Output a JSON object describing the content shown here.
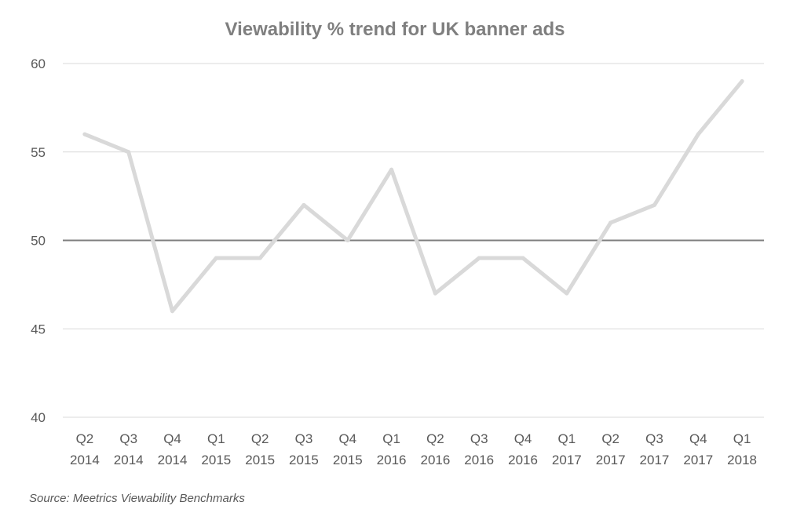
{
  "chart_data": {
    "type": "line",
    "title": "Viewability % trend for UK banner ads",
    "xlabel": "",
    "ylabel": "",
    "categories": [
      [
        "Q2",
        "2014"
      ],
      [
        "Q3",
        "2014"
      ],
      [
        "Q4",
        "2014"
      ],
      [
        "Q1",
        "2015"
      ],
      [
        "Q2",
        "2015"
      ],
      [
        "Q3",
        "2015"
      ],
      [
        "Q4",
        "2015"
      ],
      [
        "Q1",
        "2016"
      ],
      [
        "Q2",
        "2016"
      ],
      [
        "Q3",
        "2016"
      ],
      [
        "Q4",
        "2016"
      ],
      [
        "Q1",
        "2017"
      ],
      [
        "Q2",
        "2017"
      ],
      [
        "Q3",
        "2017"
      ],
      [
        "Q4",
        "2017"
      ],
      [
        "Q1",
        "2018"
      ]
    ],
    "series": [
      {
        "values": [
          56,
          55,
          46,
          49,
          49,
          52,
          50,
          54,
          47,
          49,
          49,
          47,
          51,
          52,
          56,
          59
        ]
      }
    ],
    "ylim": [
      40,
      60
    ],
    "yticks": [
      40,
      45,
      50,
      55,
      60
    ],
    "reference_line": 50,
    "grid": true,
    "legend": "none",
    "colors": {
      "line": "#d9d9d9",
      "grid": "#d9d9d9",
      "reference": "#7f7f7f",
      "title": "#7f7f7f"
    },
    "source": "Source: Meetrics Viewability Benchmarks"
  }
}
